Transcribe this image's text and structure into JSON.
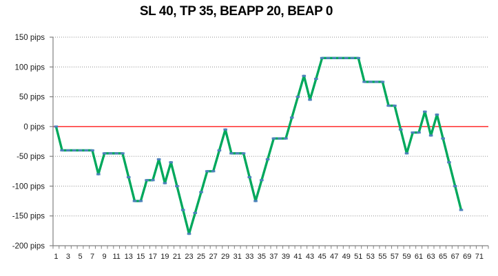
{
  "title": "SL 40, TP 35, BEAPP 20, BEAP 0",
  "colors": {
    "series_green": "#00A85C",
    "marker_blue": "#4F81BD",
    "zero_line_red": "#FF0000",
    "axis_gray": "#808080",
    "gridline_gray": "#8C8C8C",
    "text": "#1a1a1a",
    "background": "#FFFFFF"
  },
  "chart_data": {
    "type": "line",
    "title": "SL 40, TP 35, BEAPP 20, BEAP 0",
    "xlabel": "",
    "ylabel": "",
    "x": [
      1,
      2,
      3,
      4,
      5,
      6,
      7,
      8,
      9,
      10,
      11,
      12,
      13,
      14,
      15,
      16,
      17,
      18,
      19,
      20,
      21,
      22,
      23,
      24,
      25,
      26,
      27,
      28,
      29,
      30,
      31,
      32,
      33,
      34,
      35,
      36,
      37,
      38,
      39,
      40,
      41,
      42,
      43,
      44,
      45,
      46,
      47,
      48,
      49,
      50,
      51,
      52,
      53,
      54,
      55,
      56,
      57,
      58,
      59,
      60,
      61,
      62,
      63,
      64,
      65,
      66,
      67,
      68
    ],
    "values": [
      0,
      -40,
      -40,
      -40,
      -40,
      -40,
      -40,
      -80,
      -45,
      -45,
      -45,
      -45,
      -85,
      -125,
      -125,
      -90,
      -90,
      -55,
      -95,
      -60,
      -100,
      -140,
      -180,
      -145,
      -110,
      -75,
      -75,
      -40,
      -5,
      -45,
      -45,
      -45,
      -85,
      -125,
      -90,
      -55,
      -20,
      -20,
      -20,
      15,
      50,
      85,
      45,
      80,
      115,
      115,
      115,
      115,
      115,
      115,
      115,
      75,
      75,
      75,
      75,
      35,
      35,
      -5,
      -45,
      -10,
      -10,
      25,
      -15,
      20,
      -20,
      -60,
      -100,
      -140
    ],
    "y_tick_values": [
      150,
      100,
      50,
      0,
      -50,
      -100,
      -150,
      -200
    ],
    "y_tick_labels": [
      "150 pips",
      "100 pips",
      "50 pips",
      "0 pips",
      "-50 pips",
      "-100 pips",
      "-150 pips",
      "-200 pips"
    ],
    "x_tick_labels": [
      "1",
      "3",
      "5",
      "7",
      "9",
      "11",
      "13",
      "15",
      "17",
      "19",
      "21",
      "23",
      "25",
      "27",
      "29",
      "31",
      "33",
      "35",
      "37",
      "39",
      "41",
      "43",
      "45",
      "47",
      "49",
      "51",
      "53",
      "55",
      "57",
      "59",
      "61",
      "63",
      "65",
      "67",
      "69",
      "71"
    ],
    "ylim": [
      -200,
      150
    ],
    "x_categories": 72,
    "grid": "horizontal-dotted",
    "zero_line_value": 0,
    "legend": "none",
    "marker": "horizontal-dash"
  }
}
